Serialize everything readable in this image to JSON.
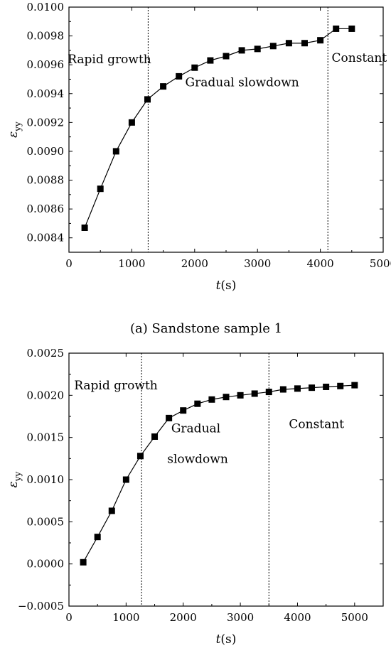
{
  "chart_data": [
    {
      "type": "line",
      "title": "",
      "caption": "(a) Sandstone sample 1",
      "xlabel": {
        "italic": "t",
        "rest": "(s)"
      },
      "ylabel": {
        "main": "ε",
        "sub": "yy"
      },
      "xlim": [
        0,
        5000
      ],
      "ylim": [
        0.0083,
        0.01
      ],
      "x_ticks": [
        0,
        1000,
        2000,
        3000,
        4000,
        5000
      ],
      "x_tick_labels": [
        "0",
        "1000",
        "2000",
        "3000",
        "4000",
        "5000"
      ],
      "y_ticks": [
        0.0084,
        0.0086,
        0.0088,
        0.009,
        0.0092,
        0.0094,
        0.0096,
        0.0098,
        0.01
      ],
      "y_tick_labels": [
        "0.0084",
        "0.0086",
        "0.0088",
        "0.0090",
        "0.0092",
        "0.0094",
        "0.0096",
        "0.0098",
        "0.0100"
      ],
      "grid": false,
      "vlines": [
        1260,
        4120
      ],
      "annotations": [
        {
          "text": "Rapid growth",
          "x": -20,
          "y": 0.00961
        },
        {
          "text": "Gradual slowdown",
          "x": 1850,
          "y": 0.00945
        },
        {
          "text": "Constant",
          "x": 4180,
          "y": 0.00962
        }
      ],
      "series": [
        {
          "x": [
            250,
            500,
            750,
            1000,
            1250,
            1500,
            1750,
            2000,
            2250,
            2500,
            2750,
            3000,
            3250,
            3500,
            3750,
            4000,
            4250,
            4500
          ],
          "y": [
            0.00847,
            0.00874,
            0.009,
            0.0092,
            0.00936,
            0.00945,
            0.00952,
            0.00958,
            0.00963,
            0.00966,
            0.0097,
            0.00971,
            0.00973,
            0.00975,
            0.00975,
            0.00977,
            0.00985,
            0.00985
          ]
        }
      ]
    },
    {
      "type": "line",
      "title": "",
      "xlabel": {
        "italic": "t",
        "rest": "(s)"
      },
      "ylabel": {
        "main": "ε",
        "sub": "yy"
      },
      "xlim": [
        0,
        5500
      ],
      "ylim": [
        -0.0005,
        0.0025
      ],
      "x_ticks": [
        0,
        1000,
        2000,
        3000,
        4000,
        5000
      ],
      "x_tick_labels": [
        "0",
        "1000",
        "2000",
        "3000",
        "4000",
        "5000"
      ],
      "y_ticks": [
        -0.0005,
        0,
        0.0005,
        0.001,
        0.0015,
        0.002,
        0.0025
      ],
      "y_tick_labels": [
        "−0.0005",
        "0.0000",
        "0.0005",
        "0.0010",
        "0.0015",
        "0.0020",
        "0.0025"
      ],
      "grid": false,
      "vlines": [
        1270,
        3500
      ],
      "annotations": [
        {
          "text": "Rapid growth",
          "x": 90,
          "y": 0.00207
        },
        {
          "text": "Gradual",
          "x": 1790,
          "y": 0.00156
        },
        {
          "text": "slowdown",
          "x": 1720,
          "y": 0.0012
        },
        {
          "text": "Constant",
          "x": 3850,
          "y": 0.00161
        }
      ],
      "series": [
        {
          "x": [
            250,
            500,
            750,
            1000,
            1250,
            1500,
            1750,
            2000,
            2250,
            2500,
            2750,
            3000,
            3250,
            3500,
            3750,
            4000,
            4250,
            4500,
            4750,
            5000
          ],
          "y": [
            2e-05,
            0.00032,
            0.00063,
            0.001,
            0.00128,
            0.00151,
            0.00173,
            0.00182,
            0.0019,
            0.00195,
            0.00198,
            0.002,
            0.00202,
            0.00204,
            0.00207,
            0.00208,
            0.00209,
            0.0021,
            0.00211,
            0.00212
          ]
        }
      ]
    }
  ]
}
